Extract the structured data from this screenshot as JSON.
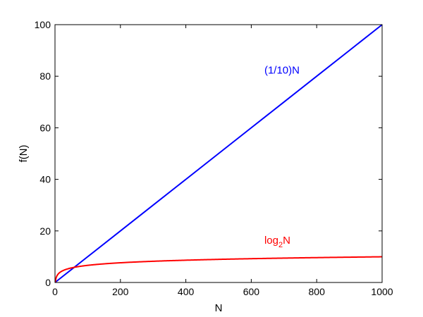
{
  "chart_data": {
    "type": "line",
    "title": "",
    "xlabel": "N",
    "ylabel": "f(N)",
    "xlim": [
      0,
      1000
    ],
    "ylim": [
      0,
      100
    ],
    "xticks": [
      0,
      200,
      400,
      600,
      800,
      1000
    ],
    "yticks": [
      0,
      20,
      40,
      60,
      80,
      100
    ],
    "grid": false,
    "series": [
      {
        "name": "(1/10)N",
        "color": "#0000ff",
        "function": "linear_tenth",
        "x": [
          0,
          100,
          200,
          300,
          400,
          500,
          600,
          700,
          800,
          900,
          1000
        ],
        "y": [
          0,
          10,
          20,
          30,
          40,
          50,
          60,
          70,
          80,
          90,
          100
        ],
        "label_pos": [
          640,
          81
        ]
      },
      {
        "name_base": "log",
        "name_sub": "2",
        "name_tail": "N",
        "color": "#ff0000",
        "function": "log2",
        "x": [
          1,
          2,
          5,
          10,
          20,
          50,
          100,
          200,
          300,
          400,
          500,
          600,
          700,
          800,
          900,
          1000
        ],
        "y": [
          0,
          1,
          2.32,
          3.32,
          4.32,
          5.64,
          6.64,
          7.64,
          8.23,
          8.64,
          8.97,
          9.23,
          9.45,
          9.64,
          9.81,
          9.97
        ],
        "label_pos": [
          640,
          15
        ]
      }
    ]
  }
}
